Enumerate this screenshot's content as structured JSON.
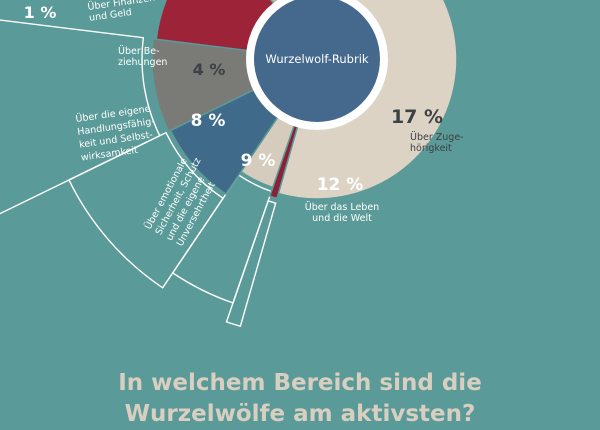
{
  "chart_data": {
    "type": "pie",
    "center_label": "Wurzelwolf-Rubrik",
    "title_lines": [
      "In welchem Bereich sind die",
      "Wurzelwölfe am aktivsten?"
    ],
    "slices": [
      {
        "value": 1,
        "pct_label": "1 %",
        "category": [
          "Über Finanzen",
          "und Geld"
        ],
        "color": "#8b2036"
      },
      {
        "value": 4,
        "pct_label": "4 %",
        "category": [
          "Über Be-",
          "ziehungen"
        ],
        "color": "#d6ccbd"
      },
      {
        "value": 8,
        "pct_label": "8 %",
        "category": [
          "Über die eigene",
          "Handlungsfähig-",
          "keit und Selbst-",
          "wirksamkeit"
        ],
        "color": "#3f6a8a"
      },
      {
        "value": 9,
        "pct_label": "9 %",
        "category": [
          "Über emotionale",
          "Sicherheit, Schutz",
          "und die eigene",
          "Unversehrtheit"
        ],
        "color": "#7a7a76"
      },
      {
        "value": 12,
        "pct_label": "12 %",
        "category": [
          "Über das Leben",
          "und die Welt"
        ],
        "color": "#9c2338"
      },
      {
        "value": 17,
        "pct_label": "17 %",
        "category": [
          "Über Zuge-",
          "hörigkeit"
        ],
        "color": "#c2b29a"
      },
      {
        "value": 49,
        "pct_label": "",
        "category": [],
        "color": "#dcd3c5"
      }
    ]
  },
  "colors": {
    "background": "#5a9a98",
    "outline": "#ffffff",
    "center_fill": "#44698c",
    "title": "#d8cfc0",
    "label_light": "#ffffff",
    "label_dark": "#3d4044"
  }
}
